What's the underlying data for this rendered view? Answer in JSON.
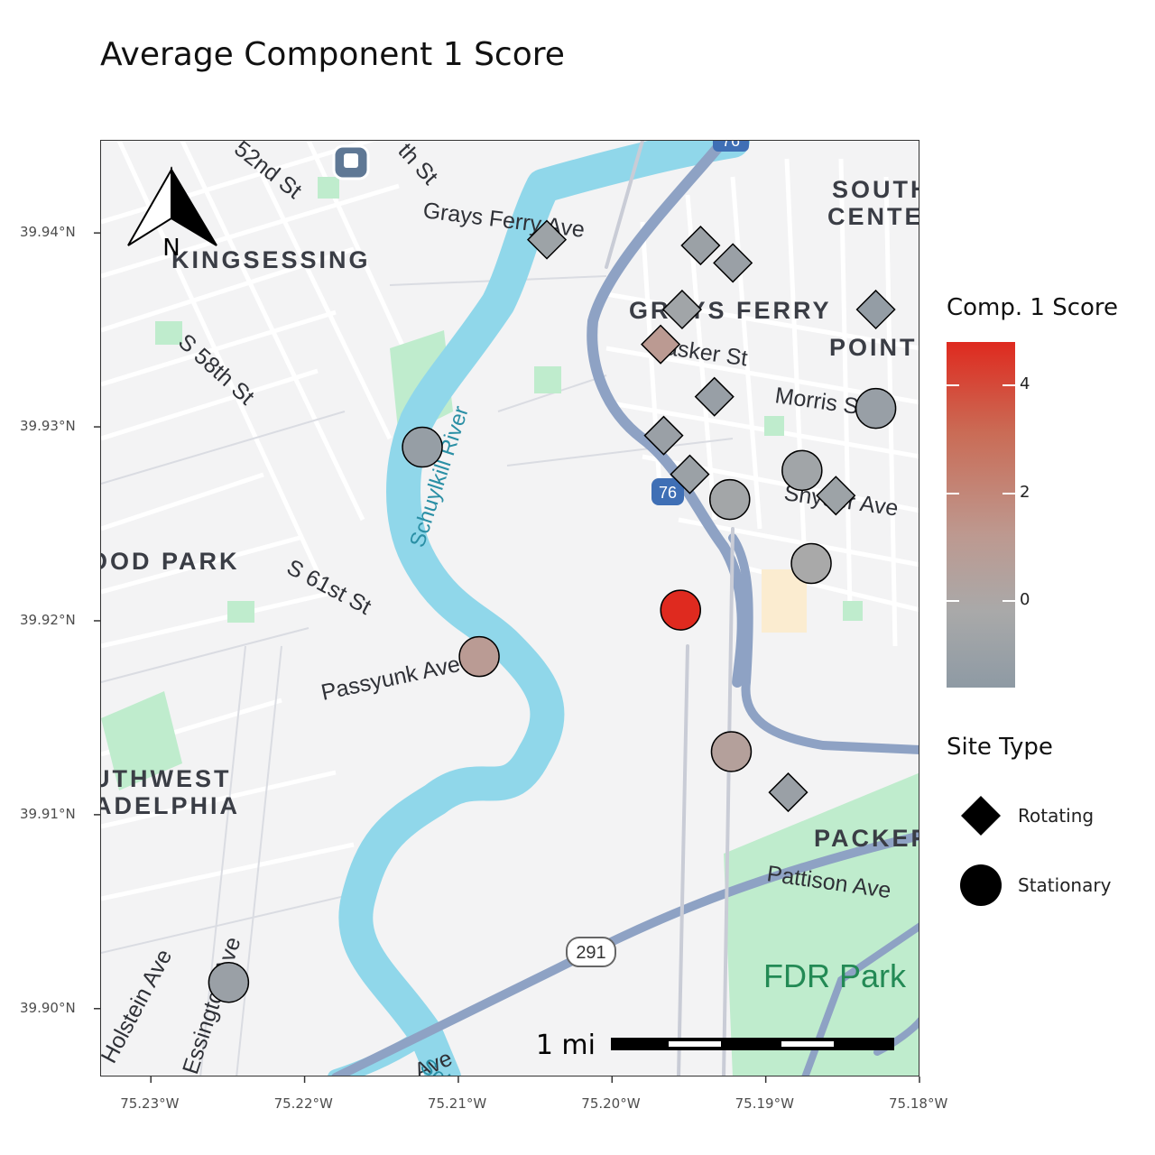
{
  "title": "Average Component 1 Score",
  "map_labels": {
    "kingsessing": "KINGSESSING",
    "grays_ferry": "GRAYS FERRY",
    "south_center": "SOUTH\nCENTER",
    "point": "POINT",
    "wood_park": "OOD PARK",
    "southwest": "UTHWEST",
    "philadelphia": "ADELPHIA",
    "packer": "PACKER",
    "fdr_park": "FDR Park",
    "grays_ferry_ave": "Grays Ferry Ave",
    "tasker_st": "Tasker St",
    "morris_st": "Morris St",
    "snyder_ave": "Snyder Ave",
    "passyunk_ave": "Passyunk Ave",
    "s61st": "S 61st St",
    "s58th": "S 58th St",
    "s52nd": "52nd St",
    "th_st": "th St",
    "schuylkill": "Schuylkill River",
    "pattison": "Pattison Ave",
    "holstein": "Holstein Ave",
    "essington": "Essington Ave",
    "sch": "Sch",
    "ave_bottom": "Ave",
    "route_291": "291",
    "route_76": "76"
  },
  "north_arrow_label": "N",
  "scale_bar_label": "1 mi",
  "y_axis_ticks": [
    "39.94°N",
    "39.93°N",
    "39.92°N",
    "39.91°N",
    "39.90°N"
  ],
  "x_axis_ticks": [
    "75.23°W",
    "75.22°W",
    "75.21°W",
    "75.20°W",
    "75.19°W",
    "75.18°W"
  ],
  "legend": {
    "color_title": "Comp. 1 Score",
    "color_ticks": [
      "4",
      "2",
      "0"
    ],
    "shape_title": "Site Type",
    "shape_items": [
      {
        "label": "Rotating",
        "shape": "diamond"
      },
      {
        "label": "Stationary",
        "shape": "circle"
      }
    ]
  },
  "colors": {
    "high": "#df2a1f",
    "mid": "#bd9990",
    "low": "#8e9aa4",
    "water": "#90d7ea",
    "park": "#bfeccd",
    "highway": "#8ea2c4"
  },
  "chart_data": {
    "type": "scatter",
    "title": "Average Component 1 Score",
    "xlim": [
      -75.2333,
      -75.18
    ],
    "ylim": [
      39.8965,
      39.9448
    ],
    "x_unit": "longitude",
    "y_unit": "latitude",
    "points": [
      {
        "lon": -75.2043,
        "lat": 39.9397,
        "score": -0.8,
        "site_type": "Rotating"
      },
      {
        "lon": -75.1943,
        "lat": 39.9394,
        "score": -0.9,
        "site_type": "Rotating"
      },
      {
        "lon": -75.1922,
        "lat": 39.9385,
        "score": -1.0,
        "site_type": "Rotating"
      },
      {
        "lon": -75.1955,
        "lat": 39.9361,
        "score": -0.6,
        "site_type": "Rotating"
      },
      {
        "lon": -75.1829,
        "lat": 39.9361,
        "score": -1.3,
        "site_type": "Rotating"
      },
      {
        "lon": -75.1969,
        "lat": 39.9343,
        "score": 1.1,
        "site_type": "Rotating"
      },
      {
        "lon": -75.1934,
        "lat": 39.9316,
        "score": -1.1,
        "site_type": "Rotating"
      },
      {
        "lon": -75.1967,
        "lat": 39.9296,
        "score": -1.0,
        "site_type": "Rotating"
      },
      {
        "lon": -75.195,
        "lat": 39.9276,
        "score": -0.9,
        "site_type": "Rotating"
      },
      {
        "lon": -75.1855,
        "lat": 39.9265,
        "score": -0.8,
        "site_type": "Rotating"
      },
      {
        "lon": -75.1886,
        "lat": 39.9112,
        "score": -1.0,
        "site_type": "Rotating"
      },
      {
        "lon": -75.1829,
        "lat": 39.931,
        "score": -1.1,
        "site_type": "Stationary"
      },
      {
        "lon": -75.2124,
        "lat": 39.929,
        "score": -1.2,
        "site_type": "Stationary"
      },
      {
        "lon": -75.1877,
        "lat": 39.9278,
        "score": -0.6,
        "site_type": "Stationary"
      },
      {
        "lon": -75.1924,
        "lat": 39.9263,
        "score": -0.5,
        "site_type": "Stationary"
      },
      {
        "lon": -75.1871,
        "lat": 39.923,
        "score": -0.2,
        "site_type": "Stationary"
      },
      {
        "lon": -75.1956,
        "lat": 39.9206,
        "score": 4.8,
        "site_type": "Stationary"
      },
      {
        "lon": -75.2087,
        "lat": 39.9182,
        "score": 1.0,
        "site_type": "Stationary"
      },
      {
        "lon": -75.1923,
        "lat": 39.9133,
        "score": 0.6,
        "site_type": "Stationary"
      },
      {
        "lon": -75.225,
        "lat": 39.9014,
        "score": -1.0,
        "site_type": "Stationary"
      }
    ],
    "color_scale": {
      "min": -1.6,
      "max": 4.8
    }
  }
}
